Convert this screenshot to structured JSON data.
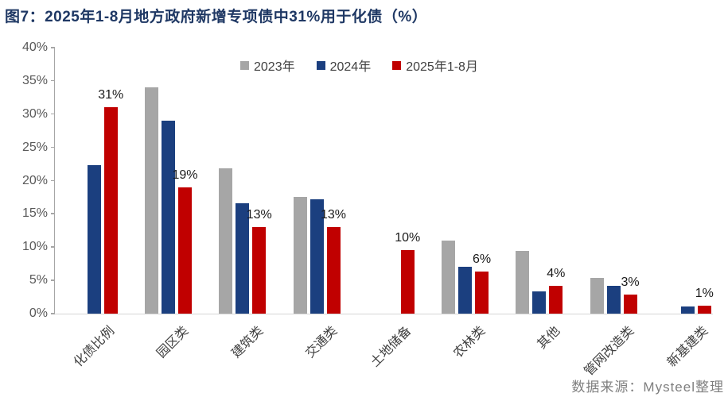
{
  "title": {
    "text": "图7：2025年1-8月地方政府新增专项债中31%用于化债（%）",
    "color": "#1f3864"
  },
  "source_note": "数据来源：Mysteel整理",
  "chart_data": {
    "type": "bar",
    "title": "图7：2025年1-8月地方政府新增专项债中31%用于化债（%）",
    "xlabel": "",
    "ylabel": "",
    "categories": [
      "化债比例",
      "园区类",
      "建筑类",
      "交通类",
      "土地储备",
      "农林类",
      "其他",
      "管网改造类",
      "新基建类"
    ],
    "series": [
      {
        "name": "2023年",
        "color": "#a6a6a6",
        "values": [
          null,
          34,
          21.8,
          17.6,
          null,
          11,
          9.4,
          5.4,
          null
        ]
      },
      {
        "name": "2024年",
        "color": "#1b3f7f",
        "values": [
          22.3,
          29,
          16.6,
          17.2,
          null,
          7,
          3.3,
          4.2,
          1.1
        ]
      },
      {
        "name": "2025年1-8月",
        "color": "#c00000",
        "values": [
          31,
          19,
          13,
          13,
          9.5,
          6.3,
          4.2,
          2.9,
          1.2
        ]
      }
    ],
    "bar_labels": {
      "series": "2025年1-8月",
      "values": [
        "31%",
        "19%",
        "13%",
        "13%",
        "10%",
        "6%",
        "4%",
        "3%",
        "1%"
      ]
    },
    "ylim": [
      0,
      40
    ],
    "yticks": [
      "0%",
      "5%",
      "10%",
      "15%",
      "20%",
      "25%",
      "30%",
      "35%",
      "40%"
    ],
    "legend_position": "top",
    "grid": false
  }
}
